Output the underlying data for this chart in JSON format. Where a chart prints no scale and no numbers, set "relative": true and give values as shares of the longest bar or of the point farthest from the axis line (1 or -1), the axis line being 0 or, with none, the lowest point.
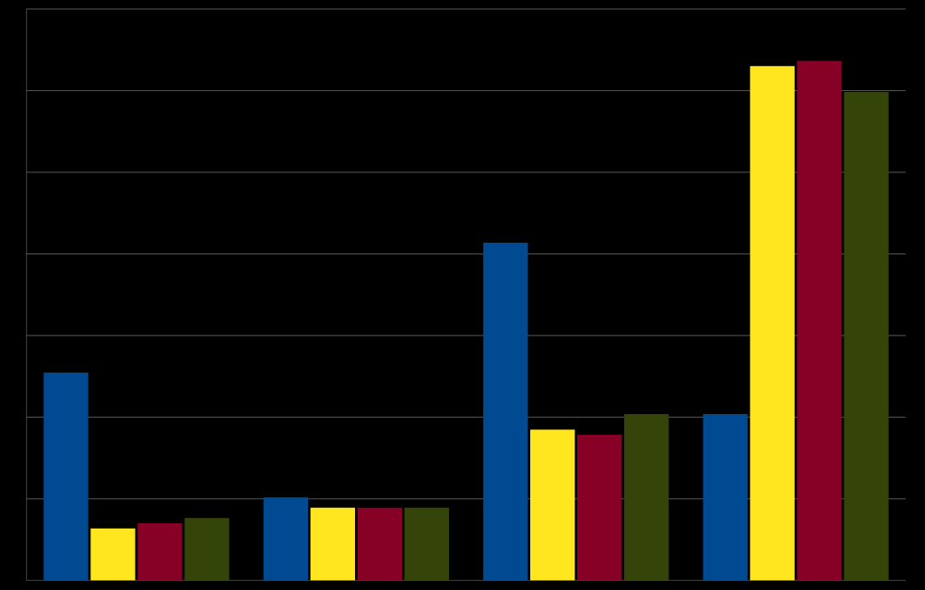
{
  "chart_data": {
    "type": "bar",
    "relative": true,
    "categories": [
      null,
      null,
      null,
      null
    ],
    "grid": "y",
    "series": [
      {
        "color": "#004a91",
        "values": [
          0.4,
          0.16,
          0.65,
          0.32
        ]
      },
      {
        "color": "#ffe61e",
        "values": [
          0.1,
          0.14,
          0.29,
          0.99
        ]
      },
      {
        "color": "#870026",
        "values": [
          0.11,
          0.14,
          0.28,
          1
        ]
      },
      {
        "color": "#354409",
        "values": [
          0.12,
          0.14,
          0.32,
          0.94
        ]
      }
    ]
  }
}
